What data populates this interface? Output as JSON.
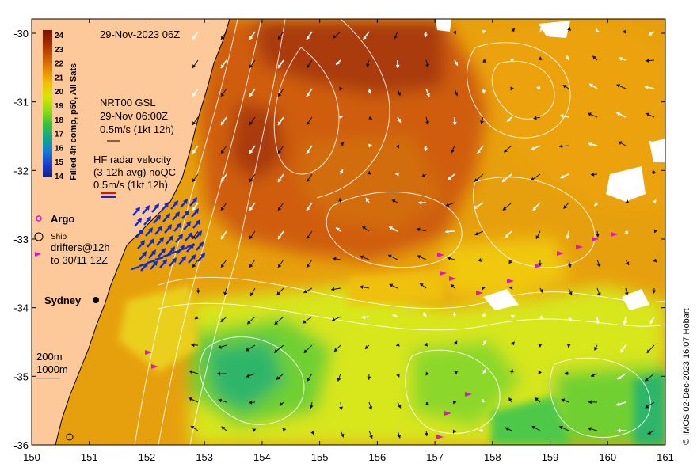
{
  "map": {
    "timestamp": "29-Nov-2023 06Z",
    "product": {
      "line1": "NRT00 GSL",
      "line2": "29-Nov 06:00Z",
      "line3": "0.5m/s (1kt 12h)"
    },
    "hf_radar": {
      "line1": "HF radar velocity",
      "line2": "(3-12h avg) noQC",
      "line3": "0.5m/s (1kt 12h)"
    },
    "legend": {
      "argo": "Argo",
      "ship": "Ship",
      "drifters_line1": "drifters@12h",
      "drifters_line2": "to 30/11 12Z"
    },
    "city": "Sydney",
    "bathymetry": {
      "contour1": "200m",
      "contour2": "1000m"
    },
    "credit": "© IMOS 02-Dec-2023 16:07 Hobart",
    "colorbar": {
      "title": "Filled 4h comp, p50, All Sats",
      "ticks": [
        "24",
        "23",
        "22",
        "21",
        "20",
        "19",
        "18",
        "17",
        "16",
        "15",
        "14"
      ],
      "colors": [
        "#7a1200",
        "#a42b00",
        "#cc5500",
        "#e68a00",
        "#f2c000",
        "#d8e600",
        "#90dc10",
        "#35c23c",
        "#10a88c",
        "#1180d4",
        "#1a40d0",
        "#10208e"
      ]
    },
    "x_ticks": [
      "150",
      "151",
      "152",
      "153",
      "154",
      "155",
      "156",
      "157",
      "158",
      "159",
      "160",
      "161"
    ],
    "y_ticks": [
      "-30",
      "-31",
      "-32",
      "-33",
      "-34",
      "-35",
      "-36"
    ],
    "colors": {
      "land": "#fdc89a",
      "warm": "#c44e0d",
      "mid": "#eda40c",
      "cool": "#d6e51a",
      "green": "#6ccf32",
      "hf_arrow": "#1226d6",
      "drifter": "#e011d6"
    }
  }
}
